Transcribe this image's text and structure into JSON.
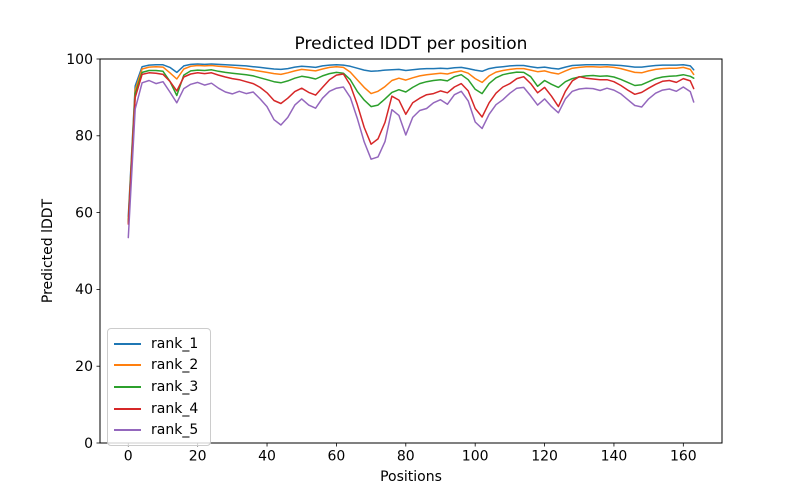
{
  "chart_data": {
    "type": "line",
    "title": "Predicted lDDT per position",
    "xlabel": "Positions",
    "ylabel": "Predicted lDDT",
    "xlim": [
      -8.15,
      171.15
    ],
    "ylim": [
      0,
      100
    ],
    "x_ticks": [
      0,
      20,
      40,
      60,
      80,
      100,
      120,
      140,
      160
    ],
    "y_ticks": [
      0,
      20,
      40,
      60,
      80,
      100
    ],
    "grid": false,
    "legend_position": "lower left",
    "x": [
      0,
      2,
      4,
      6,
      8,
      10,
      12,
      14,
      16,
      18,
      20,
      22,
      24,
      26,
      28,
      30,
      32,
      34,
      36,
      38,
      40,
      42,
      44,
      46,
      48,
      50,
      52,
      54,
      56,
      58,
      60,
      62,
      64,
      66,
      68,
      70,
      72,
      74,
      76,
      78,
      80,
      82,
      84,
      86,
      88,
      90,
      92,
      94,
      96,
      98,
      100,
      102,
      104,
      106,
      108,
      110,
      112,
      114,
      116,
      118,
      120,
      122,
      124,
      126,
      128,
      130,
      132,
      134,
      136,
      138,
      140,
      142,
      144,
      146,
      148,
      150,
      152,
      154,
      156,
      158,
      160,
      162,
      163
    ],
    "series": [
      {
        "name": "rank_1",
        "color": "#1f77b4",
        "values": [
          59,
          93,
          98,
          98.4,
          98.5,
          98.5,
          97.8,
          96.5,
          98.2,
          98.6,
          98.7,
          98.6,
          98.7,
          98.6,
          98.5,
          98.4,
          98.3,
          98.2,
          98,
          97.8,
          97.6,
          97.4,
          97.3,
          97.5,
          97.9,
          98.1,
          98,
          97.8,
          98.2,
          98.4,
          98.5,
          98.4,
          98.1,
          97.6,
          97.1,
          96.8,
          96.9,
          97.1,
          97.2,
          97.3,
          97,
          97.2,
          97.4,
          97.5,
          97.5,
          97.6,
          97.5,
          97.7,
          97.8,
          97.5,
          97.1,
          96.8,
          97.5,
          97.8,
          98,
          98.2,
          98.3,
          98.3,
          98,
          97.7,
          97.9,
          97.6,
          97.4,
          97.9,
          98.3,
          98.4,
          98.5,
          98.5,
          98.5,
          98.5,
          98.4,
          98.3,
          98.1,
          97.9,
          97.9,
          98.1,
          98.3,
          98.4,
          98.4,
          98.4,
          98.5,
          98.2,
          97.2
        ]
      },
      {
        "name": "rank_2",
        "color": "#ff7f0e",
        "values": [
          58,
          92,
          97.4,
          97.9,
          98,
          97.9,
          96.4,
          94.8,
          97.4,
          98.1,
          98.3,
          98.2,
          98.3,
          98.1,
          98,
          97.8,
          97.6,
          97.4,
          97.1,
          96.8,
          96.5,
          96.2,
          96,
          96.4,
          96.9,
          97.3,
          97.1,
          96.9,
          97.4,
          97.8,
          98,
          97.8,
          96.6,
          94.6,
          92.6,
          91,
          91.6,
          92.8,
          94.4,
          95,
          94.5,
          95.1,
          95.6,
          95.9,
          96.1,
          96.3,
          96.1,
          96.6,
          96.9,
          96.3,
          94.9,
          93.9,
          95.6,
          96.6,
          97,
          97.3,
          97.5,
          97.5,
          97.1,
          96.7,
          96.9,
          96.4,
          96.1,
          96.9,
          97.6,
          97.8,
          98,
          98,
          97.9,
          98,
          97.8,
          97.5,
          97,
          96.5,
          96.4,
          96.9,
          97.3,
          97.5,
          97.6,
          97.6,
          97.8,
          97.3,
          96
        ]
      },
      {
        "name": "rank_3",
        "color": "#2ca02c",
        "values": [
          57.5,
          91,
          96.5,
          97,
          97,
          96.8,
          94.2,
          90.5,
          95.8,
          96.9,
          97.1,
          97,
          97.2,
          96.8,
          96.5,
          96.3,
          96.1,
          95.9,
          95.6,
          95.1,
          94.6,
          94.1,
          93.8,
          94.3,
          95,
          95.5,
          95.2,
          94.8,
          95.6,
          96.2,
          96.5,
          96.3,
          94.6,
          91.6,
          89.3,
          87.6,
          88,
          89.6,
          91.3,
          92,
          91.4,
          92.6,
          93.6,
          94.1,
          94.4,
          94.6,
          94.3,
          95.4,
          95.9,
          94.6,
          92.1,
          91,
          93.6,
          95.1,
          95.9,
          96.3,
          96.6,
          96.5,
          95.4,
          92.9,
          94.4,
          93.4,
          92.6,
          94.1,
          94.9,
          95.3,
          95.6,
          95.7,
          95.5,
          95.6,
          95.3,
          94.7,
          93.9,
          93.1,
          93.3,
          94.1,
          94.9,
          95.3,
          95.5,
          95.6,
          95.9,
          95.5,
          95
        ]
      },
      {
        "name": "rank_4",
        "color": "#d62728",
        "values": [
          57,
          90,
          96,
          96.4,
          96.3,
          96,
          94.2,
          91.7,
          95.3,
          96.1,
          96.4,
          96.2,
          96.4,
          95.8,
          95.3,
          94.9,
          94.6,
          94.1,
          93.6,
          92.6,
          91.2,
          89.2,
          88.4,
          89.8,
          91.5,
          92.4,
          91.3,
          90.6,
          92.6,
          94.6,
          95.8,
          96.1,
          93.2,
          88.2,
          82.2,
          77.8,
          79.2,
          83.5,
          90.3,
          89.3,
          85.6,
          88.6,
          89.8,
          90.7,
          91,
          91.7,
          91.2,
          92.7,
          93.6,
          91.7,
          87.1,
          84.9,
          88.6,
          91.1,
          92.7,
          93.6,
          94.9,
          95.4,
          93.6,
          91.2,
          92.6,
          90.3,
          87.6,
          91.6,
          94.3,
          95.4,
          95,
          94.8,
          94.6,
          94.6,
          94.1,
          93.1,
          91.9,
          90.8,
          91.3,
          92.4,
          93.4,
          94.2,
          94.4,
          93.9,
          94.9,
          94.3,
          92.3
        ]
      },
      {
        "name": "rank_5",
        "color": "#9467bd",
        "values": [
          53.5,
          87,
          93.8,
          94.4,
          93.6,
          94.1,
          91.4,
          88.6,
          92.3,
          93.4,
          93.9,
          93.2,
          93.7,
          92.4,
          91.4,
          90.9,
          91.6,
          91,
          91.4,
          89.6,
          87.6,
          84.2,
          82.8,
          84.8,
          88,
          89.6,
          88,
          87.2,
          89.8,
          91.6,
          92.4,
          92.7,
          90,
          84.6,
          78.4,
          73.9,
          74.5,
          78.5,
          86.8,
          85.3,
          80.2,
          84.8,
          86.6,
          87.1,
          88.6,
          89.4,
          88.2,
          90.7,
          91.6,
          89.1,
          83.6,
          81.9,
          85.6,
          88.1,
          89.4,
          91.1,
          92.4,
          92.6,
          90.4,
          88,
          89.6,
          87.6,
          86,
          89.6,
          91.6,
          92.2,
          92.4,
          92.3,
          91.8,
          92.4,
          91.9,
          90.9,
          89.4,
          87.9,
          87.5,
          89.6,
          91.1,
          91.9,
          92.2,
          91.6,
          92.7,
          91.5,
          88.8
        ]
      }
    ]
  }
}
